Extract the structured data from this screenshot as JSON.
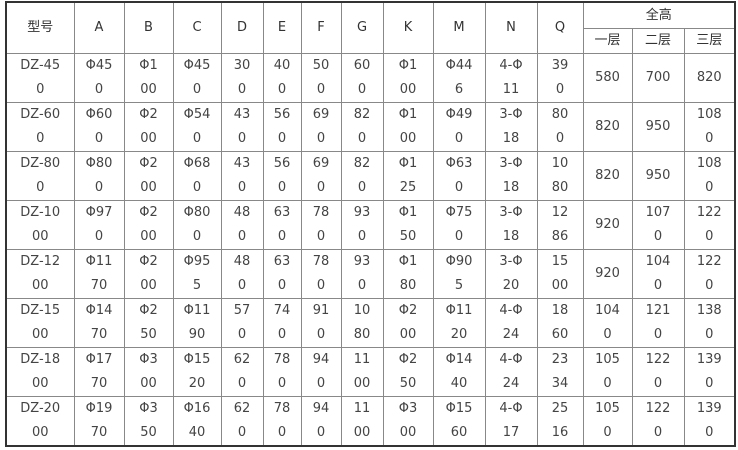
{
  "table": {
    "headers": [
      "型号",
      "A",
      "B",
      "C",
      "D",
      "E",
      "F",
      "G",
      "K",
      "M",
      "N",
      "Q"
    ],
    "group_header": "全高",
    "sub_headers": [
      "一层",
      "二层",
      "三层"
    ],
    "rows": [
      [
        "DZ-45\n0",
        "Φ45\n0",
        "Φ1\n00",
        "Φ45\n0",
        "30\n0",
        "40\n0",
        "50\n0",
        "60\n0",
        "Φ1\n00",
        "Φ44\n6",
        "4-Φ\n11",
        "39\n0",
        "580",
        "700",
        "820"
      ],
      [
        "DZ-60\n0",
        "Φ60\n0",
        "Φ2\n00",
        "Φ54\n0",
        "43\n0",
        "56\n0",
        "69\n0",
        "82\n0",
        "Φ1\n00",
        "Φ49\n0",
        "3-Φ\n18",
        "80\n0",
        "820",
        "950",
        "108\n0"
      ],
      [
        "DZ-80\n0",
        "Φ80\n0",
        "Φ2\n00",
        "Φ68\n0",
        "43\n0",
        "56\n0",
        "69\n0",
        "82\n0",
        "Φ1\n25",
        "Φ63\n0",
        "3-Φ\n18",
        "10\n80",
        "820",
        "950",
        "108\n0"
      ],
      [
        "DZ-10\n00",
        "Φ97\n0",
        "Φ2\n00",
        "Φ80\n0",
        "48\n0",
        "63\n0",
        "78\n0",
        "93\n0",
        "Φ1\n50",
        "Φ75\n0",
        "3-Φ\n18",
        "12\n86",
        "920",
        "107\n0",
        "122\n0"
      ],
      [
        "DZ-12\n00",
        "Φ11\n70",
        "Φ2\n00",
        "Φ95\n5",
        "48\n0",
        "63\n0",
        "78\n0",
        "93\n0",
        "Φ1\n80",
        "Φ90\n5",
        "3-Φ\n20",
        "15\n00",
        "920",
        "104\n0",
        "122\n0"
      ],
      [
        "DZ-15\n00",
        "Φ14\n70",
        "Φ2\n50",
        "Φ11\n90",
        "57\n0",
        "74\n0",
        "91\n0",
        "10\n80",
        "Φ2\n00",
        "Φ11\n20",
        "4-Φ\n24",
        "18\n60",
        "104\n0",
        "121\n0",
        "138\n0"
      ],
      [
        "DZ-18\n00",
        "Φ17\n70",
        "Φ3\n00",
        "Φ15\n20",
        "62\n0",
        "78\n0",
        "94\n0",
        "11\n00",
        "Φ2\n50",
        "Φ14\n40",
        "4-Φ\n24",
        "23\n34",
        "105\n0",
        "122\n0",
        "139\n0"
      ],
      [
        "DZ-20\n00",
        "Φ19\n70",
        "Φ3\n50",
        "Φ16\n40",
        "62\n0",
        "78\n0",
        "94\n0",
        "11\n00",
        "Φ3\n00",
        "Φ15\n60",
        "4-Φ\n17",
        "25\n16",
        "105\n0",
        "122\n0",
        "139\n0"
      ]
    ]
  }
}
